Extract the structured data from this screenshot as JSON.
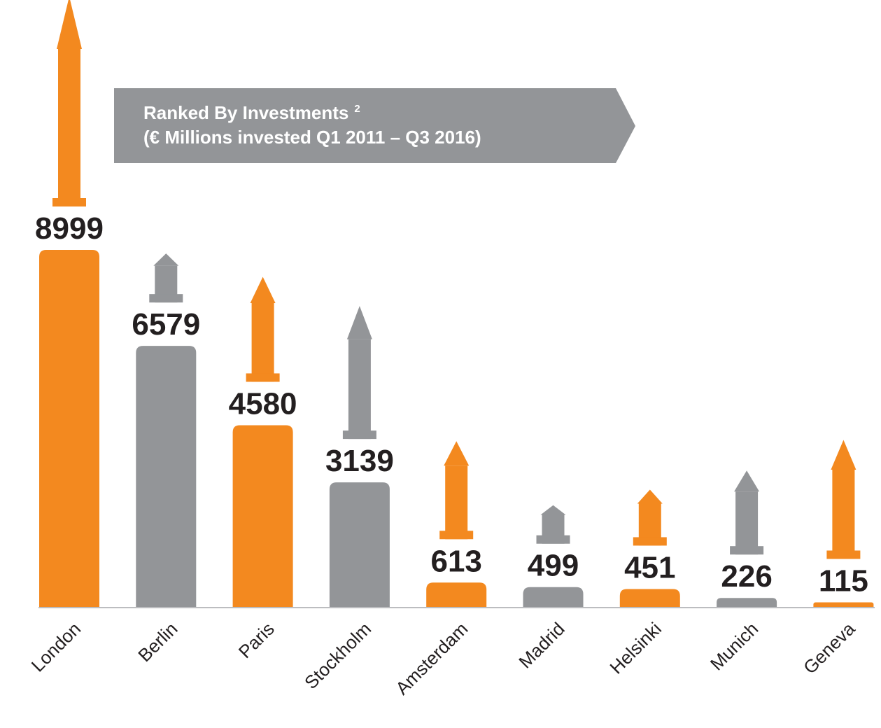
{
  "chart_data": {
    "type": "bar",
    "title": "Ranked By Investments",
    "title_footnote": "2",
    "subtitle": "(€ Millions invested Q1 2011 – Q3 2016)",
    "categories": [
      "London",
      "Berlin",
      "Paris",
      "Stockholm",
      "Amsterdam",
      "Madrid",
      "Helsinki",
      "Munich",
      "Geneva"
    ],
    "values": [
      8999,
      6579,
      4580,
      3139,
      613,
      499,
      451,
      226,
      115
    ],
    "colors": [
      "#f3891f",
      "#939598",
      "#f3891f",
      "#939598",
      "#f3891f",
      "#939598",
      "#f3891f",
      "#939598",
      "#f3891f"
    ]
  }
}
